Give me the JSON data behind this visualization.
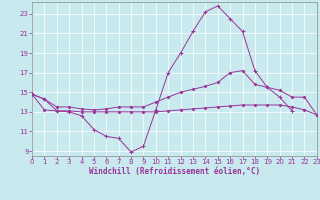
{
  "bg_color": "#c8eaee",
  "line_color": "#993399",
  "grid_color": "#b0d8e0",
  "xlim": [
    0,
    23
  ],
  "ylim": [
    8.5,
    24.2
  ],
  "xticks": [
    0,
    1,
    2,
    3,
    4,
    5,
    6,
    7,
    8,
    9,
    10,
    11,
    12,
    13,
    14,
    15,
    16,
    17,
    18,
    19,
    20,
    21,
    22,
    23
  ],
  "yticks": [
    9,
    11,
    13,
    15,
    17,
    19,
    21,
    23
  ],
  "hours1": [
    0,
    1,
    2,
    3,
    4,
    5,
    6,
    7,
    8,
    9,
    10,
    11,
    12,
    13,
    14,
    15,
    16,
    17,
    18,
    19,
    20,
    21
  ],
  "line1": [
    14.8,
    14.3,
    13.1,
    13.0,
    12.6,
    11.2,
    10.5,
    10.3,
    8.9,
    9.5,
    13.2,
    17.0,
    19.0,
    21.2,
    23.2,
    23.8,
    22.5,
    21.2,
    17.2,
    15.5,
    14.5,
    13.1
  ],
  "hours2": [
    0,
    1,
    2,
    3,
    4,
    5,
    6,
    7,
    8,
    9,
    10,
    11,
    12,
    13,
    14,
    15,
    16,
    17,
    18,
    19,
    20,
    21,
    22,
    23
  ],
  "line2": [
    14.8,
    14.3,
    13.5,
    13.5,
    13.3,
    13.2,
    13.3,
    13.5,
    13.5,
    13.5,
    14.0,
    14.5,
    15.0,
    15.3,
    15.6,
    16.0,
    17.0,
    17.2,
    15.8,
    15.5,
    15.2,
    14.5,
    14.5,
    12.7
  ],
  "line3": [
    14.8,
    13.2,
    13.1,
    13.1,
    13.0,
    13.0,
    13.0,
    13.0,
    13.0,
    13.0,
    13.0,
    13.1,
    13.2,
    13.3,
    13.4,
    13.5,
    13.6,
    13.7,
    13.7,
    13.7,
    13.7,
    13.5,
    13.2,
    12.7
  ],
  "xlabel": "Windchill (Refroidissement éolien,°C)",
  "tick_fontsize": 5.0,
  "xlabel_fontsize": 5.5
}
